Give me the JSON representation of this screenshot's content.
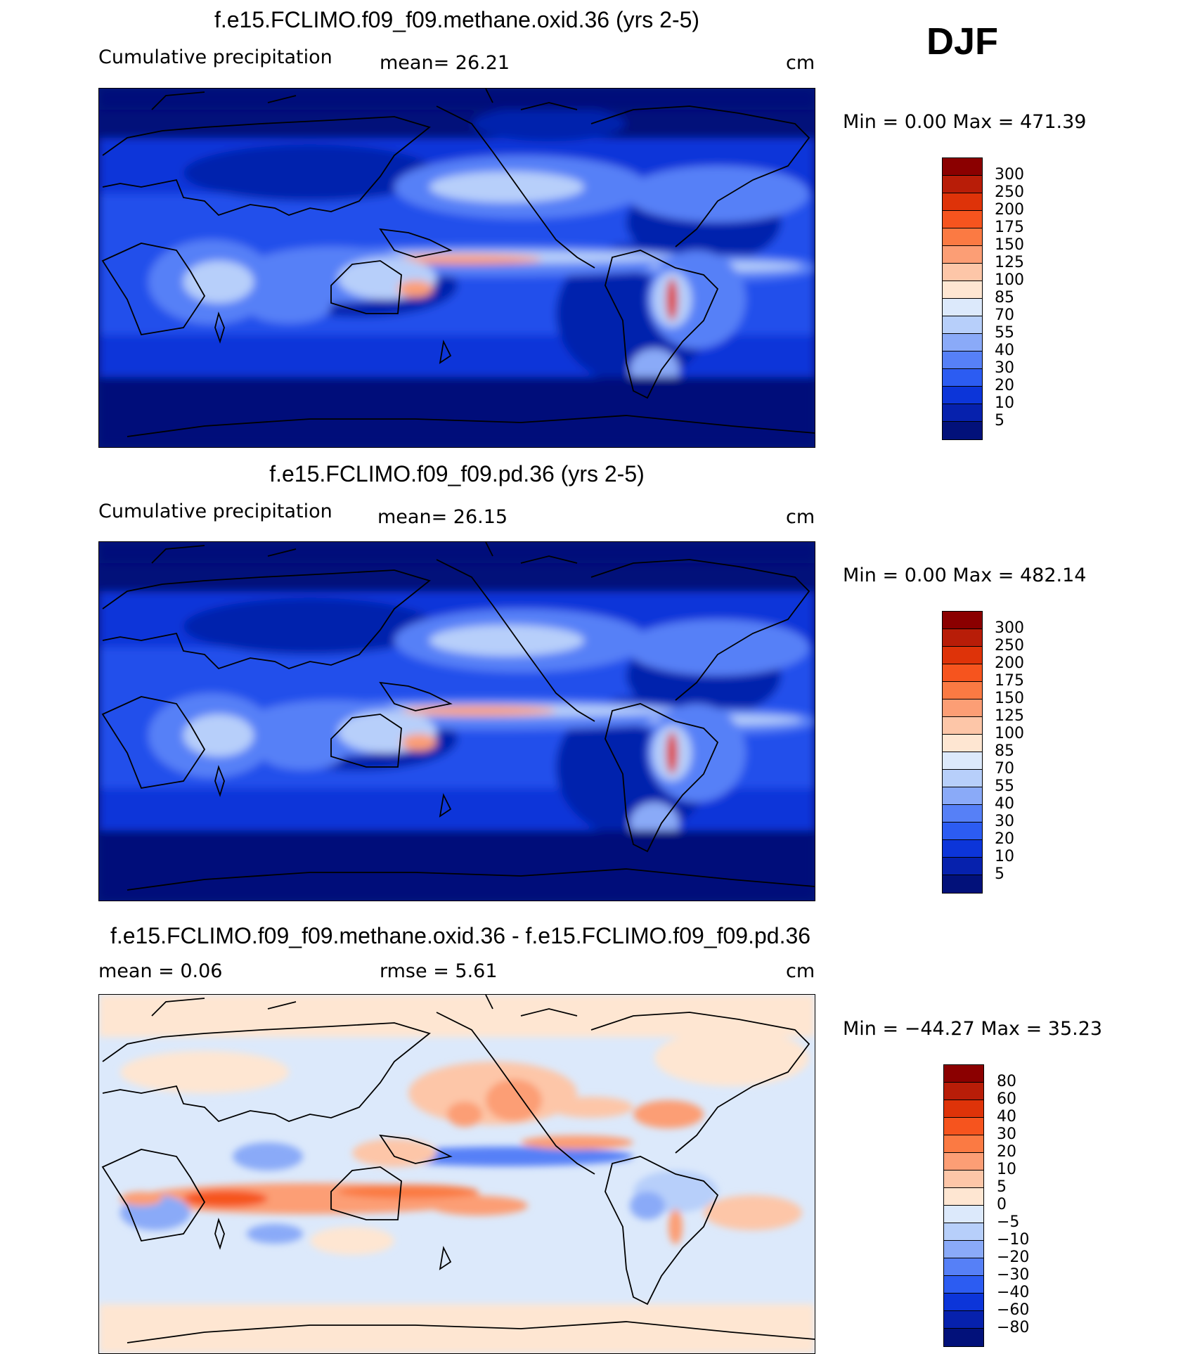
{
  "season": "DJF",
  "panels": [
    {
      "title": "f.e15.FCLIMO.f09_f09.methane.oxid.36 (yrs 2-5)",
      "label_left": "Cumulative precipitation",
      "label_mid": "mean=   26.21",
      "units": "cm",
      "minmax": "Min =    0.00 Max = 471.39",
      "levels": [
        "300",
        "250",
        "200",
        "175",
        "150",
        "125",
        "100",
        "85",
        "70",
        "55",
        "40",
        "30",
        "20",
        "10",
        "5"
      ],
      "colors": [
        "#8b0000",
        "#b81d08",
        "#de3309",
        "#f6541e",
        "#fb7a43",
        "#fc9e75",
        "#fdc6a8",
        "#fee6d2",
        "#dce9fb",
        "#b7cffa",
        "#8aaaf8",
        "#5680f7",
        "#2c5cf2",
        "#0c35d9",
        "#0621ad",
        "#02117a"
      ]
    },
    {
      "title": "f.e15.FCLIMO.f09_f09.pd.36 (yrs 2-5)",
      "label_left": "Cumulative precipitation",
      "label_mid": "mean=   26.15",
      "units": "cm",
      "minmax": "Min =    0.00 Max = 482.14",
      "levels": [
        "300",
        "250",
        "200",
        "175",
        "150",
        "125",
        "100",
        "85",
        "70",
        "55",
        "40",
        "30",
        "20",
        "10",
        "5"
      ],
      "colors": [
        "#8b0000",
        "#b81d08",
        "#de3309",
        "#f6541e",
        "#fb7a43",
        "#fc9e75",
        "#fdc6a8",
        "#fee6d2",
        "#dce9fb",
        "#b7cffa",
        "#8aaaf8",
        "#5680f7",
        "#2c5cf2",
        "#0c35d9",
        "#0621ad",
        "#02117a"
      ]
    },
    {
      "title": "f.e15.FCLIMO.f09_f09.methane.oxid.36 - f.e15.FCLIMO.f09_f09.pd.36",
      "label_left": "mean =    0.06",
      "label_mid": "rmse =    5.61",
      "units": "cm",
      "minmax": "Min = −44.27 Max =   35.23",
      "levels": [
        "80",
        "60",
        "40",
        "30",
        "20",
        "10",
        "5",
        "0",
        "−5",
        "−10",
        "−20",
        "−30",
        "−40",
        "−60",
        "−80"
      ],
      "colors": [
        "#8b0000",
        "#b81d08",
        "#de3309",
        "#f6541e",
        "#fb7a43",
        "#fc9e75",
        "#fdc6a8",
        "#fee6d2",
        "#dce9fb",
        "#b7cffa",
        "#8aaaf8",
        "#5680f7",
        "#2c5cf2",
        "#0c35d9",
        "#0621ad",
        "#02117a"
      ]
    }
  ]
}
